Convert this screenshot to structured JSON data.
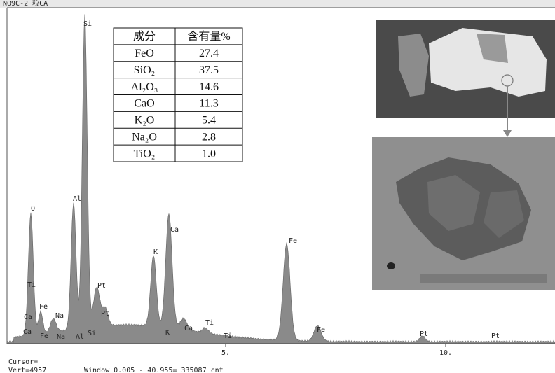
{
  "header": {
    "title": "NO9C-2 粒CA"
  },
  "table": {
    "columns": [
      "成分",
      "含有量%"
    ],
    "rows": [
      [
        "FeO",
        "27.4"
      ],
      [
        "SiO₂",
        "37.5"
      ],
      [
        "Al₂O₃",
        "14.6"
      ],
      [
        "CaO",
        "11.3"
      ],
      [
        "K₂O",
        "5.4"
      ],
      [
        "Na₂O",
        "2.8"
      ],
      [
        "TiO₂",
        "1.0"
      ]
    ]
  },
  "spectrum": {
    "peak_labels": [
      "Si",
      "O",
      "Al",
      "Ca",
      "K",
      "Fe",
      "Ti",
      "Pt",
      "Ca",
      "Fe",
      "Na",
      "Pt",
      "Ca",
      "Fe",
      "Na",
      "Al",
      "Si",
      "K",
      "Ca",
      "Ti",
      "Ti",
      "Fe",
      "Pt",
      "Pt"
    ],
    "x_tick_labels": [
      "5.",
      "10."
    ]
  },
  "status": {
    "cursor": "Cursor=",
    "vert": "Vert=4957",
    "window": "Window 0.005 - 40.955=  335087 cnt"
  }
}
